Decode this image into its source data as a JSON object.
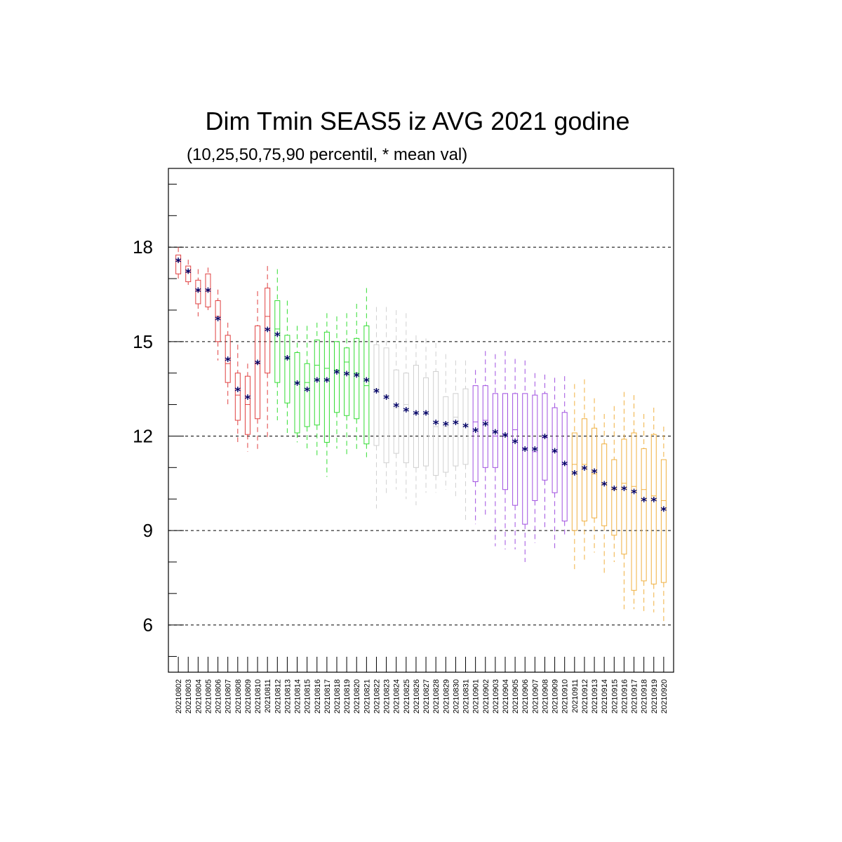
{
  "chart_data": {
    "type": "boxplot",
    "title": "Dim Tmin SEAS5 iz AVG 2021 godine",
    "subtitle": "(10,25,50,75,90 percentil, * mean val)",
    "ylim": [
      4.5,
      20.5
    ],
    "yticks": [
      6,
      9,
      12,
      15,
      18
    ],
    "grid": "horizontal dashed at major ticks",
    "month_colors": {
      "08": "#e04040",
      "08b": "#33dd33",
      "08c": "#d0d0d0",
      "09": "#a050e0",
      "09b": "#f0b040"
    },
    "mean_marker": "*",
    "mean_color": "#000066",
    "boxes": [
      {
        "date": "20210802",
        "p10": 17.0,
        "p25": 17.15,
        "p50": 17.55,
        "p75": 17.75,
        "p90": 18.0,
        "mean": 17.55,
        "color": "#e04040"
      },
      {
        "date": "20210803",
        "p10": 16.8,
        "p25": 16.9,
        "p50": 17.2,
        "p75": 17.4,
        "p90": 17.6,
        "mean": 17.2,
        "color": "#e04040"
      },
      {
        "date": "20210804",
        "p10": 15.8,
        "p25": 16.2,
        "p50": 16.6,
        "p75": 16.95,
        "p90": 17.3,
        "mean": 16.6,
        "color": "#e04040"
      },
      {
        "date": "20210805",
        "p10": 16.0,
        "p25": 16.1,
        "p50": 16.6,
        "p75": 17.15,
        "p90": 17.35,
        "mean": 16.6,
        "color": "#e04040"
      },
      {
        "date": "20210806",
        "p10": 14.4,
        "p25": 15.0,
        "p50": 15.8,
        "p75": 16.3,
        "p90": 16.65,
        "mean": 15.7,
        "color": "#e04040"
      },
      {
        "date": "20210807",
        "p10": 12.9,
        "p25": 13.7,
        "p50": 14.3,
        "p75": 15.2,
        "p90": 15.6,
        "mean": 14.4,
        "color": "#e04040"
      },
      {
        "date": "20210808",
        "p10": 11.8,
        "p25": 12.5,
        "p50": 13.3,
        "p75": 14.0,
        "p90": 14.9,
        "mean": 13.45,
        "color": "#e04040"
      },
      {
        "date": "20210809",
        "p10": 11.5,
        "p25": 12.05,
        "p50": 13.0,
        "p75": 13.9,
        "p90": 14.3,
        "mean": 13.2,
        "color": "#e04040"
      },
      {
        "date": "20210810",
        "p10": 11.5,
        "p25": 12.55,
        "p50": 14.3,
        "p75": 15.5,
        "p90": 16.6,
        "mean": 14.3,
        "color": "#e04040"
      },
      {
        "date": "20210811",
        "p10": 11.9,
        "p25": 14.0,
        "p50": 15.8,
        "p75": 16.7,
        "p90": 17.4,
        "mean": 15.35,
        "color": "#e04040"
      },
      {
        "date": "20210812",
        "p10": 12.5,
        "p25": 13.7,
        "p50": 15.4,
        "p75": 16.3,
        "p90": 17.3,
        "mean": 15.2,
        "color": "#33dd33"
      },
      {
        "date": "20210813",
        "p10": 12.1,
        "p25": 13.05,
        "p50": 14.45,
        "p75": 15.2,
        "p90": 16.3,
        "mean": 14.45,
        "color": "#33dd33"
      },
      {
        "date": "20210814",
        "p10": 11.8,
        "p25": 12.1,
        "p50": 13.7,
        "p75": 14.65,
        "p90": 15.5,
        "mean": 13.65,
        "color": "#33dd33"
      },
      {
        "date": "20210815",
        "p10": 11.5,
        "p25": 12.3,
        "p50": 13.7,
        "p75": 14.3,
        "p90": 15.5,
        "mean": 13.45,
        "color": "#33dd33"
      },
      {
        "date": "20210816",
        "p10": 11.3,
        "p25": 12.35,
        "p50": 14.25,
        "p75": 15.05,
        "p90": 15.6,
        "mean": 13.75,
        "color": "#33dd33"
      },
      {
        "date": "20210817",
        "p10": 10.7,
        "p25": 11.8,
        "p50": 14.15,
        "p75": 15.3,
        "p90": 15.9,
        "mean": 13.75,
        "color": "#33dd33"
      },
      {
        "date": "20210818",
        "p10": 11.6,
        "p25": 12.75,
        "p50": 14.1,
        "p75": 15.0,
        "p90": 15.8,
        "mean": 14.0,
        "color": "#33dd33"
      },
      {
        "date": "20210819",
        "p10": 11.4,
        "p25": 12.65,
        "p50": 14.35,
        "p75": 14.8,
        "p90": 15.9,
        "mean": 13.95,
        "color": "#33dd33"
      },
      {
        "date": "20210820",
        "p10": 11.5,
        "p25": 12.55,
        "p50": 14.0,
        "p75": 15.1,
        "p90": 16.2,
        "mean": 13.9,
        "color": "#33dd33"
      },
      {
        "date": "20210821",
        "p10": 11.3,
        "p25": 11.75,
        "p50": 13.6,
        "p75": 15.5,
        "p90": 16.7,
        "mean": 13.75,
        "color": "#33dd33"
      },
      {
        "date": "20210822",
        "p10": 9.7,
        "p25": 11.7,
        "p50": 13.5,
        "p75": 14.9,
        "p90": 16.1,
        "mean": 13.4,
        "color": "#d0d0d0"
      },
      {
        "date": "20210823",
        "p10": 10.1,
        "p25": 11.15,
        "p50": 13.3,
        "p75": 14.8,
        "p90": 16.1,
        "mean": 13.2,
        "color": "#d0d0d0"
      },
      {
        "date": "20210824",
        "p10": 10.3,
        "p25": 11.45,
        "p50": 12.9,
        "p75": 14.1,
        "p90": 16.0,
        "mean": 12.95,
        "color": "#d0d0d0"
      },
      {
        "date": "20210825",
        "p10": 10.0,
        "p25": 11.15,
        "p50": 13.0,
        "p75": 14.0,
        "p90": 15.9,
        "mean": 12.8,
        "color": "#d0d0d0"
      },
      {
        "date": "20210826",
        "p10": 9.8,
        "p25": 11.0,
        "p50": 12.7,
        "p75": 14.25,
        "p90": 15.2,
        "mean": 12.7,
        "color": "#d0d0d0"
      },
      {
        "date": "20210827",
        "p10": 10.2,
        "p25": 11.05,
        "p50": 12.7,
        "p75": 13.85,
        "p90": 15.1,
        "mean": 12.7,
        "color": "#d0d0d0"
      },
      {
        "date": "20210828",
        "p10": 10.2,
        "p25": 10.75,
        "p50": 12.3,
        "p75": 14.05,
        "p90": 14.95,
        "mean": 12.4,
        "color": "#d0d0d0"
      },
      {
        "date": "20210829",
        "p10": 10.3,
        "p25": 10.85,
        "p50": 12.3,
        "p75": 13.25,
        "p90": 14.6,
        "mean": 12.35,
        "color": "#d0d0d0"
      },
      {
        "date": "20210830",
        "p10": 10.0,
        "p25": 11.05,
        "p50": 12.6,
        "p75": 13.35,
        "p90": 14.4,
        "mean": 12.4,
        "color": "#d0d0d0"
      },
      {
        "date": "20210831",
        "p10": 9.3,
        "p25": 11.1,
        "p50": 12.3,
        "p75": 13.5,
        "p90": 14.4,
        "mean": 12.3,
        "color": "#d0d0d0"
      },
      {
        "date": "20210901",
        "p10": 9.2,
        "p25": 10.55,
        "p50": 12.45,
        "p75": 13.6,
        "p90": 14.1,
        "mean": 12.15,
        "color": "#a050e0"
      },
      {
        "date": "20210902",
        "p10": 9.5,
        "p25": 11.0,
        "p50": 12.5,
        "p75": 13.6,
        "p90": 14.7,
        "mean": 12.35,
        "color": "#a050e0"
      },
      {
        "date": "20210903",
        "p10": 8.5,
        "p25": 11.0,
        "p50": 12.0,
        "p75": 13.35,
        "p90": 14.6,
        "mean": 12.1,
        "color": "#a050e0"
      },
      {
        "date": "20210904",
        "p10": 8.4,
        "p25": 10.3,
        "p50": 12.05,
        "p75": 13.35,
        "p90": 14.7,
        "mean": 12.0,
        "color": "#a050e0"
      },
      {
        "date": "20210905",
        "p10": 8.4,
        "p25": 9.8,
        "p50": 12.2,
        "p75": 13.35,
        "p90": 14.45,
        "mean": 11.8,
        "color": "#a050e0"
      },
      {
        "date": "20210906",
        "p10": 8.0,
        "p25": 9.2,
        "p50": 11.6,
        "p75": 13.35,
        "p90": 14.4,
        "mean": 11.55,
        "color": "#a050e0"
      },
      {
        "date": "20210907",
        "p10": 8.6,
        "p25": 9.95,
        "p50": 11.5,
        "p75": 13.3,
        "p90": 14.0,
        "mean": 11.55,
        "color": "#a050e0"
      },
      {
        "date": "20210908",
        "p10": 9.0,
        "p25": 10.6,
        "p50": 11.95,
        "p75": 13.35,
        "p90": 13.95,
        "mean": 11.95,
        "color": "#a050e0"
      },
      {
        "date": "20210909",
        "p10": 8.4,
        "p25": 10.2,
        "p50": 11.5,
        "p75": 12.9,
        "p90": 13.85,
        "mean": 11.5,
        "color": "#a050e0"
      },
      {
        "date": "20210910",
        "p10": 8.8,
        "p25": 9.3,
        "p50": 11.1,
        "p75": 12.75,
        "p90": 13.9,
        "mean": 11.1,
        "color": "#a050e0"
      },
      {
        "date": "20210911",
        "p10": 7.7,
        "p25": 9.0,
        "p50": 11.1,
        "p75": 12.1,
        "p90": 13.65,
        "mean": 10.8,
        "color": "#f0b040"
      },
      {
        "date": "20210912",
        "p10": 8.0,
        "p25": 9.3,
        "p50": 11.1,
        "p75": 12.55,
        "p90": 13.8,
        "mean": 10.95,
        "color": "#f0b040"
      },
      {
        "date": "20210913",
        "p10": 8.3,
        "p25": 9.4,
        "p50": 10.8,
        "p75": 12.25,
        "p90": 13.2,
        "mean": 10.85,
        "color": "#f0b040"
      },
      {
        "date": "20210914",
        "p10": 7.6,
        "p25": 9.15,
        "p50": 10.5,
        "p75": 11.75,
        "p90": 12.7,
        "mean": 10.45,
        "color": "#f0b040"
      },
      {
        "date": "20210915",
        "p10": 8.0,
        "p25": 8.85,
        "p50": 10.3,
        "p75": 11.25,
        "p90": 12.95,
        "mean": 10.3,
        "color": "#f0b040"
      },
      {
        "date": "20210916",
        "p10": 6.5,
        "p25": 8.25,
        "p50": 10.5,
        "p75": 11.9,
        "p90": 13.4,
        "mean": 10.3,
        "color": "#f0b040"
      },
      {
        "date": "20210917",
        "p10": 6.5,
        "p25": 7.1,
        "p50": 10.4,
        "p75": 12.1,
        "p90": 13.3,
        "mean": 10.2,
        "color": "#f0b040"
      },
      {
        "date": "20210918",
        "p10": 6.4,
        "p25": 7.4,
        "p50": 10.3,
        "p75": 11.6,
        "p90": 12.7,
        "mean": 9.95,
        "color": "#f0b040"
      },
      {
        "date": "20210919",
        "p10": 6.4,
        "p25": 7.3,
        "p50": 10.1,
        "p75": 12.05,
        "p90": 12.9,
        "mean": 9.95,
        "color": "#f0b040"
      },
      {
        "date": "20210920",
        "p10": 6.0,
        "p25": 7.35,
        "p50": 9.95,
        "p75": 11.25,
        "p90": 12.3,
        "mean": 9.65,
        "color": "#f0b040"
      }
    ]
  }
}
